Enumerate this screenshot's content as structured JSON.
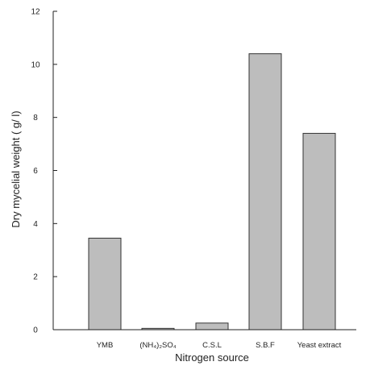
{
  "chart_data": {
    "type": "bar",
    "categories": [
      "YMB",
      "(NH₄)₂SO₄",
      "C.S.L",
      "S.B.F",
      "Yeast extract"
    ],
    "values": [
      3.45,
      0.05,
      0.25,
      10.4,
      7.4
    ],
    "xlabel": "Nitrogen source",
    "ylabel": "Dry mycelial weight ( g/ l)",
    "ylim": [
      0,
      12
    ],
    "yticks": [
      0,
      2,
      4,
      6,
      8,
      10,
      12
    ],
    "grid": false,
    "colors": {
      "bar_fill": "#bdbdbd",
      "bar_stroke": "#333333"
    }
  }
}
